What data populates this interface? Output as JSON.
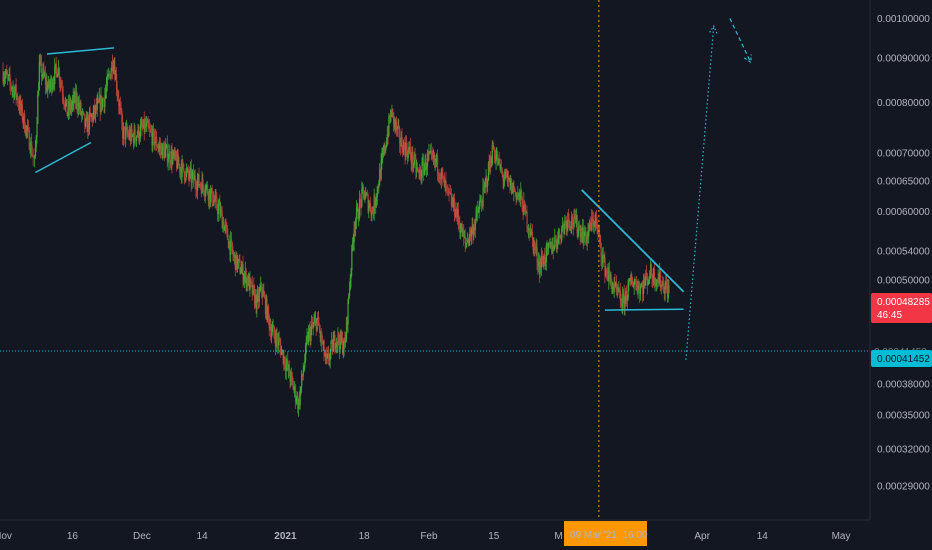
{
  "chart_data": {
    "type": "candlestick",
    "y_scale": "log",
    "ylim": [
      0.000265,
      0.00105
    ],
    "y_ticks": [
      {
        "value": 0.001,
        "label": "0.00100000"
      },
      {
        "value": 0.0009,
        "label": "0.00090000"
      },
      {
        "value": 0.0008,
        "label": "0.00080000"
      },
      {
        "value": 0.0007,
        "label": "0.00070000"
      },
      {
        "value": 0.00065,
        "label": "0.00065000"
      },
      {
        "value": 0.0006,
        "label": "0.00060000"
      },
      {
        "value": 0.00054,
        "label": "0.00054000"
      },
      {
        "value": 0.0005,
        "label": "0.00050000"
      },
      {
        "value": 0.00038,
        "label": "0.00038000"
      },
      {
        "value": 0.00035,
        "label": "0.00035000"
      },
      {
        "value": 0.00032,
        "label": "0.00032000"
      },
      {
        "value": 0.00029,
        "label": "0.00029000"
      }
    ],
    "x_ticks": [
      {
        "day": 0,
        "label": "Nov",
        "bold": false
      },
      {
        "day": 15,
        "label": "16",
        "bold": false
      },
      {
        "day": 30,
        "label": "Dec",
        "bold": false
      },
      {
        "day": 43,
        "label": "14",
        "bold": false
      },
      {
        "day": 61,
        "label": "2021",
        "bold": true
      },
      {
        "day": 78,
        "label": "18",
        "bold": false
      },
      {
        "day": 92,
        "label": "Feb",
        "bold": false
      },
      {
        "day": 106,
        "label": "15",
        "bold": false
      },
      {
        "day": 120,
        "label": "M",
        "bold": false
      },
      {
        "day": 151,
        "label": "Apr",
        "bold": false
      },
      {
        "day": 164,
        "label": "14",
        "bold": false
      },
      {
        "day": 181,
        "label": "May",
        "bold": false
      }
    ],
    "crosshair": {
      "day": 128.7,
      "label": "09 Mar '21  16:00"
    },
    "last_price": {
      "value": 0.00048285,
      "label": "0.00048285",
      "countdown": "46:45"
    },
    "horizontal_line": {
      "value": 0.00041452,
      "label": "0.00041452"
    },
    "hidden_label": "0.00041452",
    "price_path": [
      [
        0,
        0.00087
      ],
      [
        3,
        0.00082
      ],
      [
        6,
        0.00072
      ],
      [
        7,
        0.00068
      ],
      [
        8,
        0.00088
      ],
      [
        10,
        0.00083
      ],
      [
        12,
        0.00088
      ],
      [
        14,
        0.00078
      ],
      [
        16,
        0.00081
      ],
      [
        18,
        0.00075
      ],
      [
        20,
        0.00078
      ],
      [
        22,
        0.00081
      ],
      [
        24,
        0.0009
      ],
      [
        26,
        0.00074
      ],
      [
        28,
        0.00073
      ],
      [
        31,
        0.00075
      ],
      [
        34,
        0.00071
      ],
      [
        37,
        0.00069
      ],
      [
        40,
        0.00066
      ],
      [
        44,
        0.00064
      ],
      [
        47,
        0.0006
      ],
      [
        50,
        0.00053
      ],
      [
        53,
        0.0005
      ],
      [
        55,
        0.00047
      ],
      [
        56,
        0.00049
      ],
      [
        58,
        0.00044
      ],
      [
        60,
        0.00042
      ],
      [
        62,
        0.00039
      ],
      [
        64,
        0.00036
      ],
      [
        66,
        0.00043
      ],
      [
        68,
        0.00045
      ],
      [
        70,
        0.0004
      ],
      [
        72,
        0.00043
      ],
      [
        74,
        0.00042
      ],
      [
        76,
        0.00058
      ],
      [
        78,
        0.00063
      ],
      [
        80,
        0.0006
      ],
      [
        82,
        0.00068
      ],
      [
        84,
        0.00078
      ],
      [
        86,
        0.00072
      ],
      [
        88,
        0.0007
      ],
      [
        90,
        0.00066
      ],
      [
        92,
        0.00069
      ],
      [
        94,
        0.00068
      ],
      [
        96,
        0.00063
      ],
      [
        98,
        0.0006
      ],
      [
        100,
        0.00055
      ],
      [
        102,
        0.00058
      ],
      [
        104,
        0.00063
      ],
      [
        106,
        0.00071
      ],
      [
        108,
        0.00066
      ],
      [
        110,
        0.00064
      ],
      [
        112,
        0.00062
      ],
      [
        114,
        0.00057
      ],
      [
        116,
        0.00052
      ],
      [
        118,
        0.00054
      ],
      [
        120,
        0.00056
      ],
      [
        122,
        0.00059
      ],
      [
        124,
        0.00058
      ],
      [
        126,
        0.00056
      ],
      [
        128,
        0.00059
      ],
      [
        130,
        0.00052
      ],
      [
        132,
        0.00049
      ],
      [
        134,
        0.00047
      ],
      [
        136,
        0.0005
      ],
      [
        138,
        0.00049
      ],
      [
        140,
        0.00051
      ],
      [
        142,
        0.0005
      ],
      [
        144,
        0.000485
      ]
    ],
    "drawings": {
      "wedge_top": [
        [
          9.5,
          0.00091
        ],
        [
          24,
          0.000925
        ]
      ],
      "wedge_bottom": [
        [
          7,
          0.000665
        ],
        [
          19,
          0.00072
        ]
      ],
      "descending_trendline": [
        [
          125,
          0.000635
        ],
        [
          147,
          0.000485
        ]
      ],
      "support_line": [
        [
          130,
          0.000462
        ],
        [
          147,
          0.000463
        ]
      ],
      "projection_up": [
        [
          147.5,
          0.000405
        ],
        [
          153.5,
          0.00098
        ]
      ],
      "projection_down": [
        [
          157,
          0.001
        ],
        [
          161.5,
          0.00089
        ]
      ]
    },
    "colors": {
      "background": "#131722",
      "grid": "#1e222d",
      "axis_text": "#b2b5be",
      "candle_up": "#3fa832",
      "candle_down": "#b8423a",
      "drawing": "#2cbad4",
      "crosshair": "#ff9800",
      "last_price": "#f23645",
      "hline": "#00bcd4"
    }
  }
}
